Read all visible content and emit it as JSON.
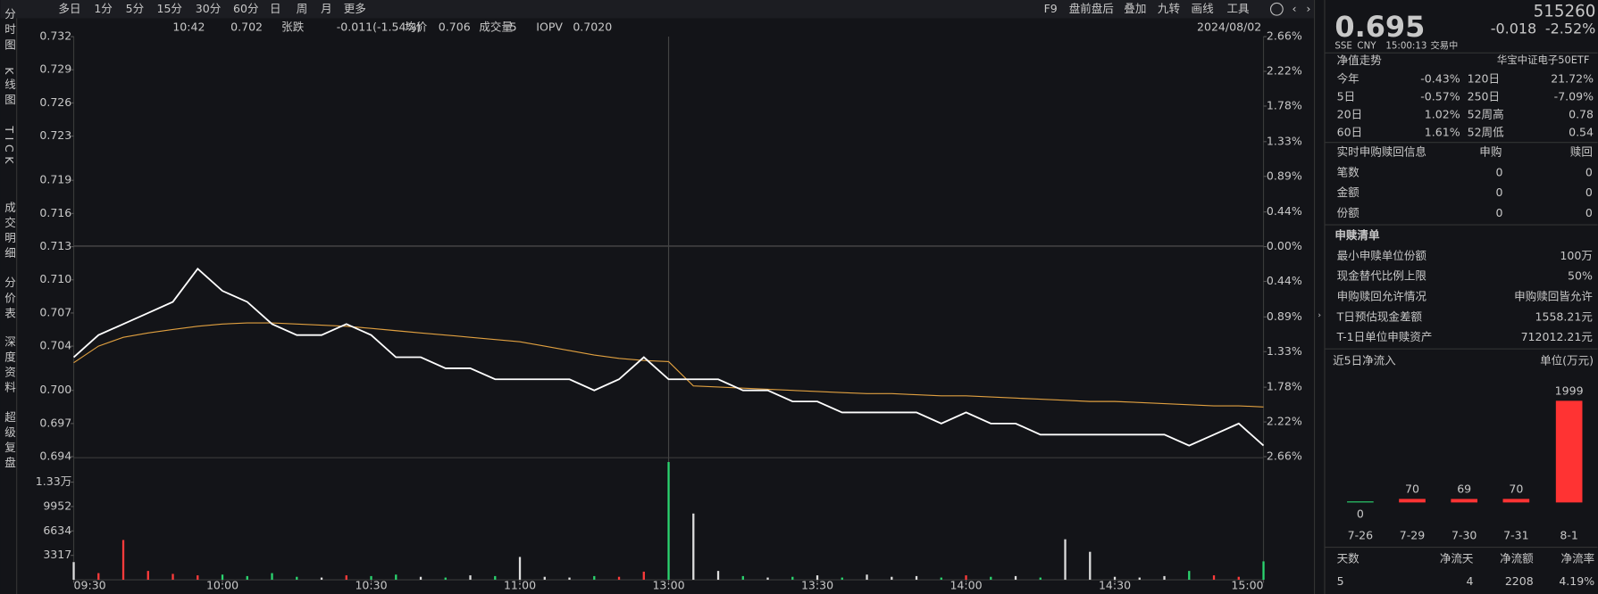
{
  "toolbar": {
    "periods": [
      "多日",
      "1分",
      "5分",
      "15分",
      "30分",
      "60分",
      "日",
      "周",
      "月",
      "更多"
    ],
    "tools": [
      "F9",
      "盘前盘后",
      "叠加",
      "九转",
      "画线",
      "工具"
    ]
  },
  "side_tabs": [
    "分时图",
    "K线图",
    "TICK",
    "成交明细",
    "分价表",
    "深度资料",
    "超级复盘"
  ],
  "info": {
    "time": "10:42",
    "price": "0.702",
    "change_label": "张跌",
    "change": "-0.011(-1.54%)",
    "avg_label": "均价",
    "avg": "0.706",
    "volume_label": "成交量",
    "volume": "5",
    "iopv_label": "IOPV",
    "iopv": "0.7020",
    "date": "2024/08/02"
  },
  "chart_data": [
    {
      "type": "line",
      "x": [
        "09:30",
        "09:35",
        "09:40",
        "09:45",
        "09:50",
        "09:55",
        "10:00",
        "10:05",
        "10:10",
        "10:15",
        "10:20",
        "10:25",
        "10:30",
        "10:35",
        "10:40",
        "10:45",
        "10:50",
        "10:55",
        "11:00",
        "11:05",
        "11:10",
        "11:15",
        "11:20",
        "11:25",
        "11:30",
        "13:05",
        "13:10",
        "13:15",
        "13:20",
        "13:25",
        "13:30",
        "13:35",
        "13:40",
        "13:45",
        "13:50",
        "13:55",
        "14:00",
        "14:05",
        "14:10",
        "14:15",
        "14:20",
        "14:25",
        "14:30",
        "14:35",
        "14:40",
        "14:45",
        "14:50",
        "14:55",
        "15:00"
      ],
      "series": [
        {
          "color": "#ffffff",
          "values": [
            0.703,
            0.705,
            0.706,
            0.707,
            0.708,
            0.711,
            0.709,
            0.708,
            0.706,
            0.705,
            0.705,
            0.706,
            0.705,
            0.703,
            0.703,
            0.702,
            0.702,
            0.701,
            0.701,
            0.701,
            0.701,
            0.7,
            0.701,
            0.703,
            0.701,
            0.701,
            0.701,
            0.7,
            0.7,
            0.699,
            0.699,
            0.698,
            0.698,
            0.698,
            0.698,
            0.697,
            0.698,
            0.697,
            0.697,
            0.696,
            0.696,
            0.696,
            0.696,
            0.696,
            0.696,
            0.695,
            0.696,
            0.697,
            0.695
          ]
        },
        {
          "color": "#e0a040",
          "values": [
            0.7025,
            0.704,
            0.7048,
            0.7052,
            0.7055,
            0.7058,
            0.706,
            0.7061,
            0.7061,
            0.706,
            0.7059,
            0.7058,
            0.7056,
            0.7054,
            0.7052,
            0.705,
            0.7048,
            0.7046,
            0.7044,
            0.704,
            0.7036,
            0.7032,
            0.7029,
            0.7027,
            0.7026,
            0.7004,
            0.7003,
            0.7002,
            0.7001,
            0.7,
            0.6999,
            0.6998,
            0.6997,
            0.6997,
            0.6996,
            0.6995,
            0.6995,
            0.6994,
            0.6993,
            0.6992,
            0.6991,
            0.699,
            0.699,
            0.6989,
            0.6988,
            0.6987,
            0.6986,
            0.6986,
            0.6985
          ]
        }
      ],
      "ylim": [
        0.694,
        0.732
      ],
      "yticks": [
        {
          "value": 0.732,
          "label": "0.732"
        },
        {
          "value": 0.729,
          "label": "0.729"
        },
        {
          "value": 0.726,
          "label": "0.726"
        },
        {
          "value": 0.723,
          "label": "0.723"
        },
        {
          "value": 0.719,
          "label": "0.719"
        },
        {
          "value": 0.716,
          "label": "0.716"
        },
        {
          "value": 0.713,
          "label": "0.713"
        },
        {
          "value": 0.71,
          "label": "0.710"
        },
        {
          "value": 0.707,
          "label": "0.707"
        },
        {
          "value": 0.704,
          "label": "0.704"
        },
        {
          "value": 0.7,
          "label": "0.700"
        },
        {
          "value": 0.697,
          "label": "0.697"
        },
        {
          "value": 0.694,
          "label": "0.694"
        }
      ],
      "y2lim": [
        -2.66,
        2.66
      ],
      "y2ticks": [
        {
          "value": 2.66,
          "label": "2.66%"
        },
        {
          "value": 2.22,
          "label": "2.22%"
        },
        {
          "value": 1.78,
          "label": "1.78%"
        },
        {
          "value": 1.33,
          "label": "1.33%"
        },
        {
          "value": 0.89,
          "label": "0.89%"
        },
        {
          "value": 0.44,
          "label": "0.44%"
        },
        {
          "value": 0,
          "label": "0.00%"
        },
        {
          "value": -0.44,
          "label": "0.44%"
        },
        {
          "value": -0.89,
          "label": "0.89%"
        },
        {
          "value": -1.33,
          "label": "1.33%"
        },
        {
          "value": -1.78,
          "label": "1.78%"
        },
        {
          "value": -2.22,
          "label": "2.22%"
        },
        {
          "value": -2.66,
          "label": "2.66%"
        }
      ],
      "xticks": [
        "09:30",
        "10:00",
        "10:30",
        "11:00",
        "13:00",
        "13:30",
        "14:00",
        "14:30",
        "15:00"
      ]
    },
    {
      "type": "bar",
      "values": [
        2400,
        900,
        5400,
        1200,
        800,
        600,
        700,
        500,
        900,
        400,
        300,
        600,
        500,
        700,
        400,
        300,
        600,
        500,
        3100,
        400,
        300,
        500,
        400,
        1100,
        16000,
        9000,
        1200,
        500,
        300,
        400,
        600,
        300,
        700,
        400,
        500,
        300,
        600,
        400,
        500,
        300,
        5500,
        3800,
        400,
        300,
        500,
        1200,
        600,
        400,
        2500
      ],
      "ylim": [
        0,
        16585
      ],
      "yticks": [
        {
          "value": 13268,
          "label": "1.33万"
        },
        9952,
        6634,
        3317
      ]
    },
    {
      "type": "bar",
      "title": "近5日净流入",
      "unit_label": "单位(万元)",
      "categories": [
        "7-26",
        "7-29",
        "7-30",
        "7-31",
        "8-1"
      ],
      "values": [
        0,
        70,
        69,
        70,
        1999
      ],
      "color": "#ff3333",
      "ylim": [
        0,
        2000
      ]
    }
  ],
  "quote": {
    "code": "515260",
    "price": "0.695",
    "change": "-0.018",
    "change_pct": "-2.52%",
    "exchange": "SSE",
    "currency": "CNY",
    "time": "15:00:13",
    "status": "交易中",
    "name": "华宝中证电子50ETF"
  },
  "nav": {
    "title": "净值走势",
    "rows": [
      [
        "今年",
        "-0.43%",
        "120日",
        "21.72%"
      ],
      [
        "5日",
        "-0.57%",
        "250日",
        "-7.09%"
      ],
      [
        "20日",
        "1.02%",
        "52周高",
        "0.78"
      ],
      [
        "60日",
        "1.61%",
        "52周低",
        "0.54"
      ]
    ]
  },
  "realtime": {
    "headers": [
      "实时申购赎回信息",
      "申购",
      "赎回"
    ],
    "rows": [
      [
        "笔数",
        "0",
        "0"
      ],
      [
        "金额",
        "0",
        "0"
      ],
      [
        "份额",
        "0",
        "0"
      ]
    ]
  },
  "creation_list": {
    "title": "申赎清单",
    "rows": [
      [
        "最小申赎单位份额",
        "100万"
      ],
      [
        "现金替代比例上限",
        "50%"
      ],
      [
        "申购赎回允许情况",
        "申购赎回皆允许"
      ],
      [
        "T日预估现金差额",
        "1558.21元"
      ],
      [
        "T-1日单位申赎资产",
        "712012.21元"
      ]
    ]
  },
  "inflow_summary": {
    "headers": [
      "天数",
      "净流天",
      "净流额",
      "净流率"
    ],
    "values": [
      "5",
      "4",
      "2208",
      "4.19%"
    ]
  }
}
